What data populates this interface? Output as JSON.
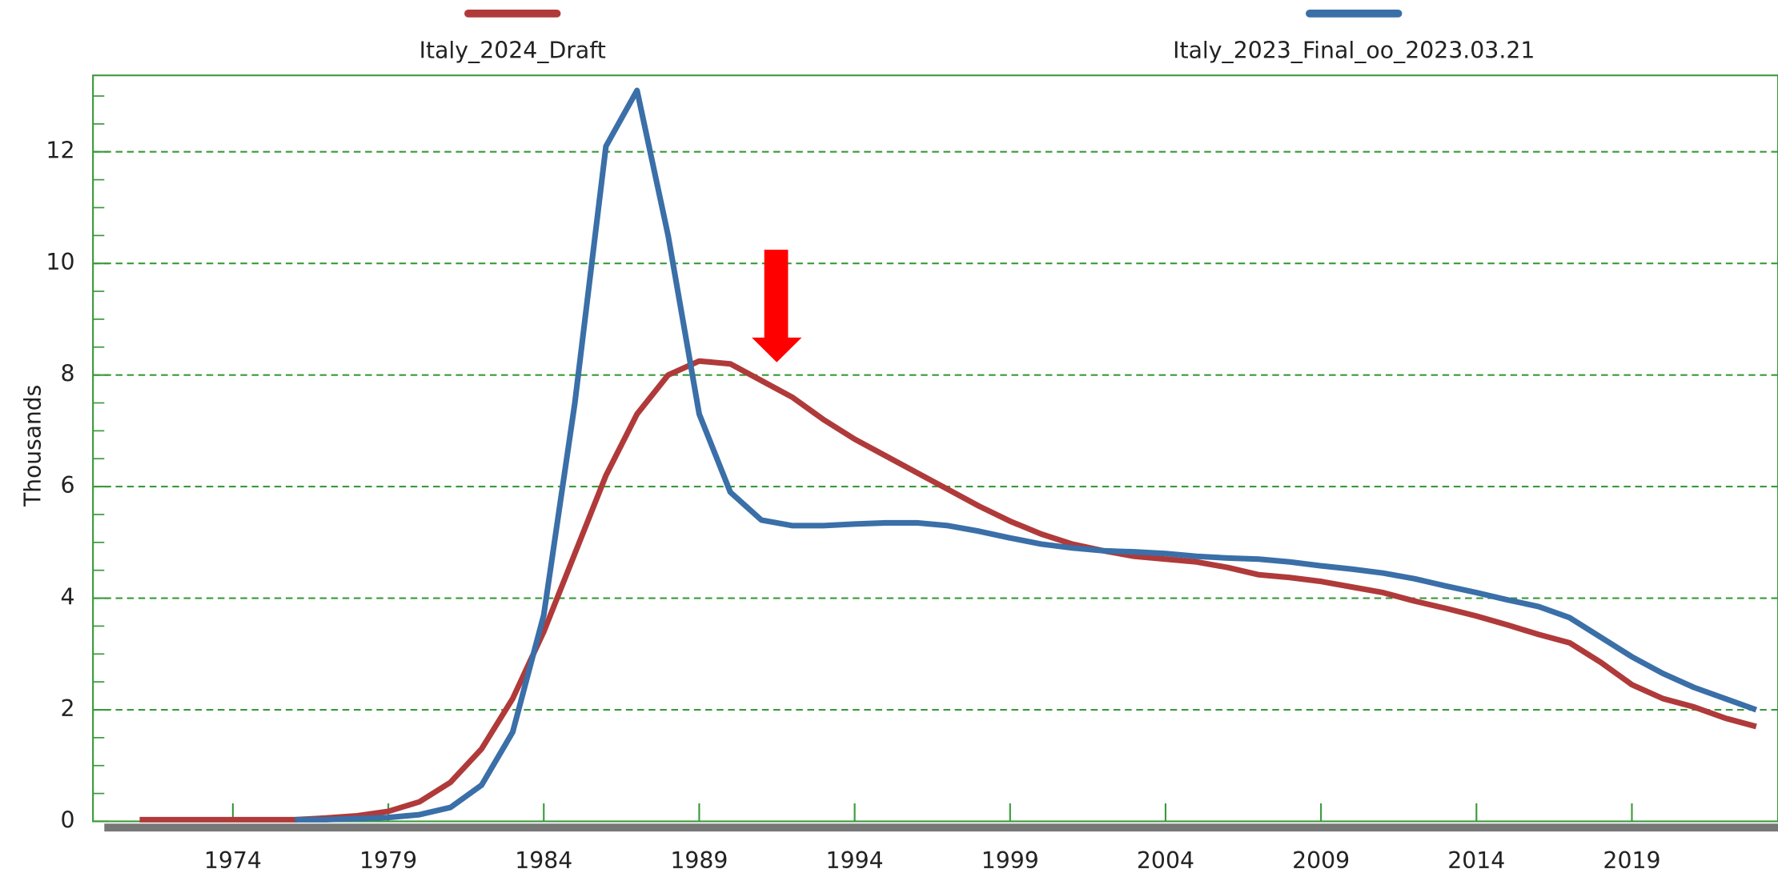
{
  "chart_data": {
    "type": "line",
    "y_label": "Thousands",
    "x": [
      1971,
      1972,
      1973,
      1974,
      1975,
      1976,
      1977,
      1978,
      1979,
      1980,
      1981,
      1982,
      1983,
      1984,
      1985,
      1986,
      1987,
      1988,
      1989,
      1990,
      1991,
      1992,
      1993,
      1994,
      1995,
      1996,
      1997,
      1998,
      1999,
      2000,
      2001,
      2002,
      2003,
      2004,
      2005,
      2006,
      2007,
      2008,
      2009,
      2010,
      2011,
      2012,
      2013,
      2014,
      2015,
      2016,
      2017,
      2018,
      2019,
      2020,
      2021,
      2022,
      2023
    ],
    "series": [
      {
        "name": "Italy_2024_Draft",
        "color": "#b03a3a",
        "values": [
          0.03,
          0.03,
          0.03,
          0.03,
          0.03,
          0.03,
          0.06,
          0.1,
          0.18,
          0.35,
          0.7,
          1.3,
          2.2,
          3.4,
          4.8,
          6.2,
          7.3,
          8.0,
          8.25,
          8.2,
          7.9,
          7.6,
          7.2,
          6.85,
          6.55,
          6.25,
          5.95,
          5.65,
          5.38,
          5.15,
          4.97,
          4.85,
          4.75,
          4.7,
          4.65,
          4.55,
          4.42,
          4.37,
          4.3,
          4.2,
          4.1,
          3.95,
          3.82,
          3.68,
          3.52,
          3.35,
          3.2,
          2.85,
          2.45,
          2.2,
          2.05,
          1.85,
          1.7
        ]
      },
      {
        "name": "Italy_2023_Final_oo_2023.03.21",
        "color": "#3a6fa8",
        "values": [
          null,
          null,
          null,
          null,
          null,
          0.03,
          0.03,
          0.05,
          0.07,
          0.12,
          0.25,
          0.65,
          1.6,
          3.7,
          7.5,
          12.1,
          13.1,
          10.5,
          7.3,
          5.9,
          5.4,
          5.3,
          5.3,
          5.33,
          5.35,
          5.35,
          5.3,
          5.2,
          5.08,
          4.97,
          4.9,
          4.85,
          4.83,
          4.8,
          4.75,
          4.72,
          4.7,
          4.65,
          4.58,
          4.52,
          4.45,
          4.35,
          4.22,
          4.1,
          3.97,
          3.85,
          3.65,
          3.3,
          2.95,
          2.65,
          2.4,
          2.2,
          2.0
        ]
      }
    ],
    "xlim": [
      1969.5,
      2023.7
    ],
    "ylim": [
      0,
      13.37
    ],
    "xticks": [
      1974,
      1979,
      1984,
      1989,
      1994,
      1999,
      2004,
      2009,
      2014,
      2019
    ],
    "yticks": [
      0,
      2,
      4,
      6,
      8,
      10,
      12
    ],
    "yminorticks": [
      0.5,
      1,
      1.5,
      2.5,
      3,
      3.5,
      4.5,
      5,
      5.5,
      6.5,
      7,
      7.5,
      8.5,
      9,
      9.5,
      10.5,
      11,
      11.5,
      12.5,
      13
    ],
    "grid": true,
    "legend": "top"
  }
}
